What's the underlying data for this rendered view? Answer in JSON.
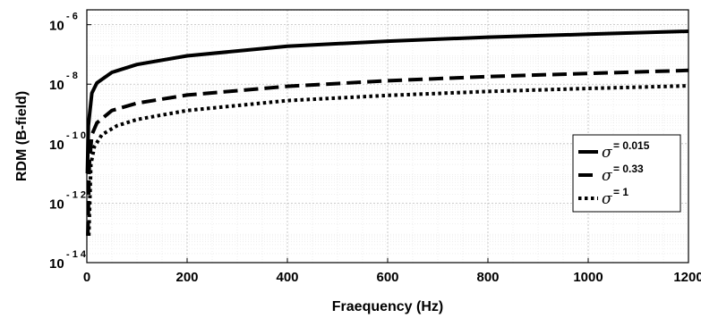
{
  "chart_data": {
    "type": "line",
    "title": "",
    "xlabel": "Fraequency (Hz)",
    "ylabel": "RDM (B-field)",
    "xlim": [
      0,
      1200
    ],
    "ylim_log10": [
      -14,
      -5.5
    ],
    "yscale": "log",
    "grid": true,
    "legend_placement": "right",
    "x_ticks": [
      "0",
      "200",
      "400",
      "600",
      "800",
      "1000",
      "1200"
    ],
    "y_ticks": [
      {
        "base": "10",
        "exp": "- 6"
      },
      {
        "base": "10",
        "exp": "- 8"
      },
      {
        "base": "10",
        "exp": "- 1 0"
      },
      {
        "base": "10",
        "exp": "- 1 2"
      },
      {
        "base": "10",
        "exp": "- 1 4"
      }
    ],
    "series": [
      {
        "name": "σ = 0.015",
        "sigma_symbol": "σ",
        "label_text": "= 0.015",
        "style": "solid",
        "x": [
          1,
          3,
          10,
          20,
          50,
          100,
          200,
          400,
          600,
          800,
          1000,
          1200
        ],
        "y": [
          1e-11,
          4e-10,
          5e-09,
          1.1e-08,
          2.5e-08,
          4.6e-08,
          9e-08,
          1.9e-07,
          2.8e-07,
          3.8e-07,
          4.8e-07,
          6e-07
        ]
      },
      {
        "name": "σ = 0.33",
        "sigma_symbol": "σ",
        "label_text": "= 0.33",
        "style": "dashed",
        "x": [
          2,
          5,
          10,
          20,
          50,
          100,
          200,
          400,
          600,
          800,
          1000,
          1200
        ],
        "y": [
          8e-14,
          2e-11,
          2e-10,
          5e-10,
          1.3e-09,
          2.3e-09,
          4.3e-09,
          8.5e-09,
          1.3e-08,
          1.8e-08,
          2.3e-08,
          2.9e-08
        ]
      },
      {
        "name": "σ = 1",
        "sigma_symbol": "σ",
        "label_text": "= 1",
        "style": "dotted",
        "x": [
          4,
          8,
          15,
          30,
          60,
          100,
          200,
          400,
          600,
          800,
          1000,
          1200
        ],
        "y": [
          8e-14,
          2e-11,
          8e-11,
          2e-10,
          4e-10,
          6.5e-10,
          1.3e-09,
          2.8e-09,
          4.2e-09,
          5.7e-09,
          7.2e-09,
          8.8e-09
        ]
      }
    ]
  }
}
